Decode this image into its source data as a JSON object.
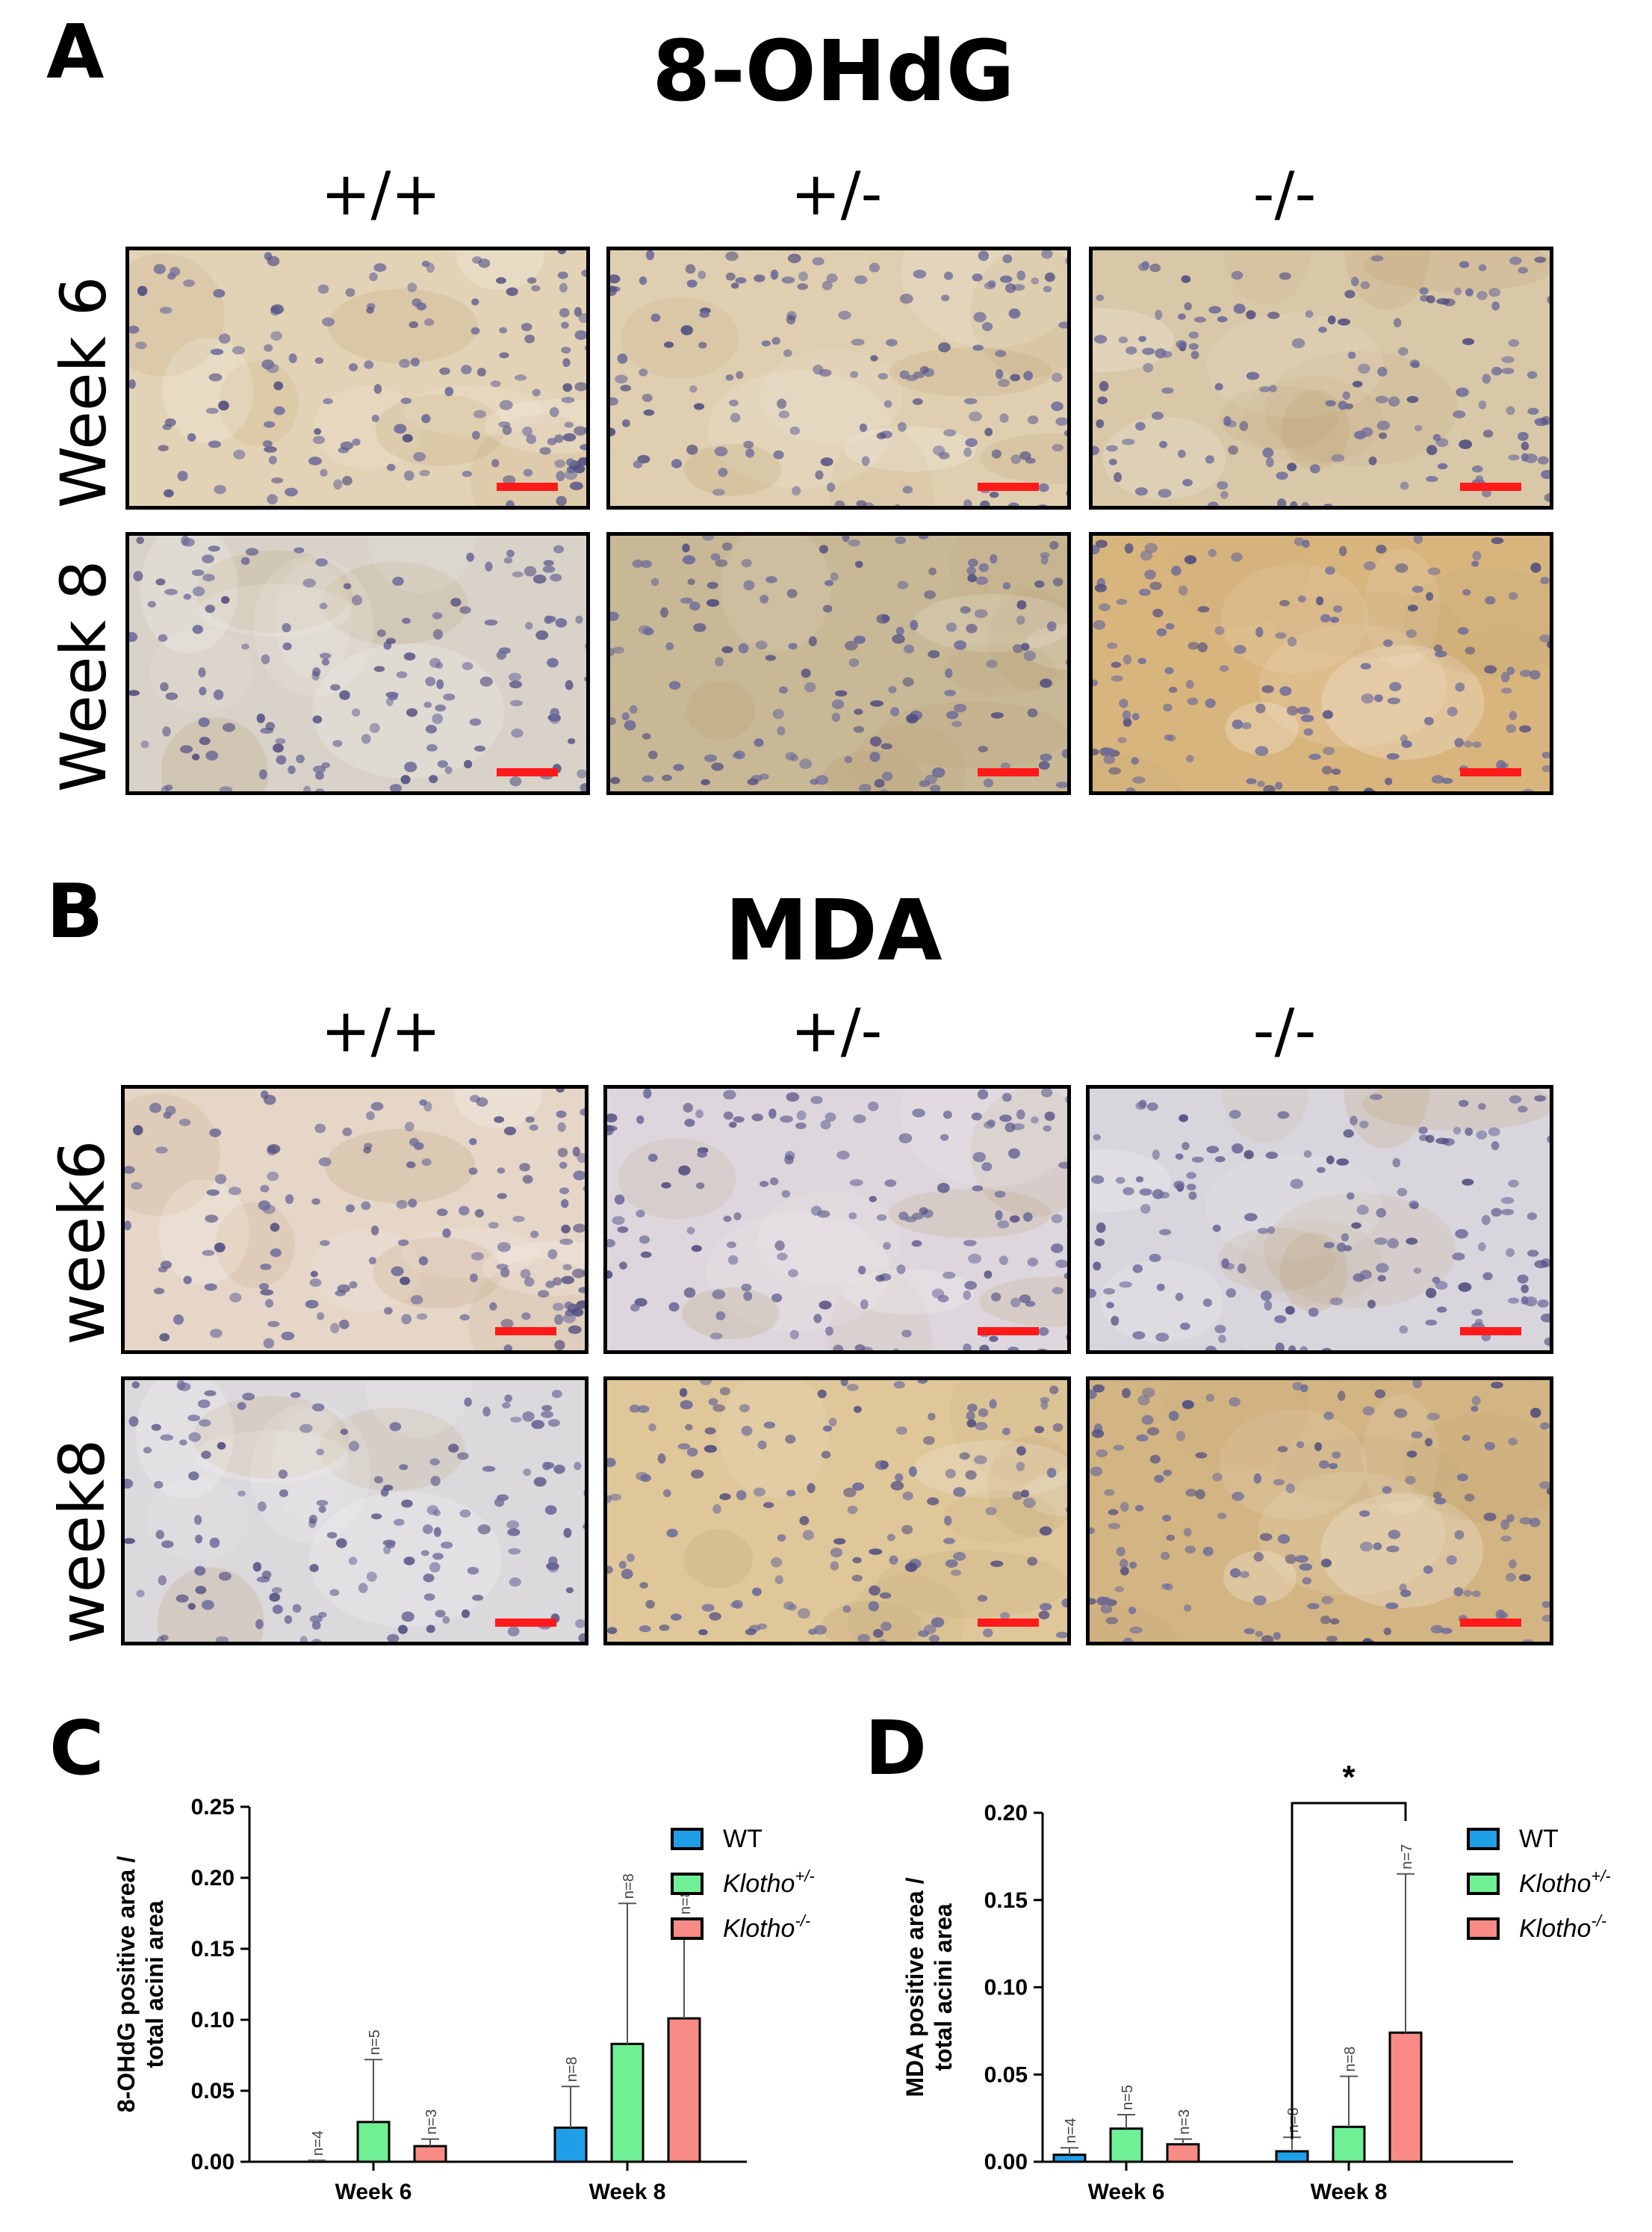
{
  "panel_a": {
    "letter": "A",
    "title": "8-OHdG",
    "columns": [
      "+/+",
      "+/-",
      "-/-"
    ],
    "rows": [
      "Week 6",
      "Week 8"
    ],
    "tiles": [
      {
        "row": 0,
        "col": 0,
        "stain": "#e3d3b6"
      },
      {
        "row": 0,
        "col": 1,
        "stain": "#dfcfb0"
      },
      {
        "row": 0,
        "col": 2,
        "stain": "#d9c8a8"
      },
      {
        "row": 1,
        "col": 0,
        "stain": "#d8d2c8"
      },
      {
        "row": 1,
        "col": 1,
        "stain": "#c8b896"
      },
      {
        "row": 1,
        "col": 2,
        "stain": "#d9b57e"
      }
    ]
  },
  "panel_b": {
    "letter": "B",
    "title": "MDA",
    "columns": [
      "+/+",
      "+/-",
      "-/-"
    ],
    "rows": [
      "week6",
      "week8"
    ],
    "tiles": [
      {
        "row": 0,
        "col": 0,
        "stain": "#e6d6c8"
      },
      {
        "row": 0,
        "col": 1,
        "stain": "#ddd6dc"
      },
      {
        "row": 0,
        "col": 2,
        "stain": "#d9d5dc"
      },
      {
        "row": 1,
        "col": 0,
        "stain": "#dcd9dd"
      },
      {
        "row": 1,
        "col": 1,
        "stain": "#dfc79a"
      },
      {
        "row": 1,
        "col": 2,
        "stain": "#d3b583"
      }
    ]
  },
  "colors": {
    "wt": "#1e9fe8",
    "het": "#6ff095",
    "ko": "#f98b86",
    "scalebar": "#ff1a1a"
  },
  "chart_data": [
    {
      "panel": "C",
      "type": "bar",
      "ylabel_line1": "8-OHdG positive area /",
      "ylabel_line2": "total acini area",
      "categories": [
        "Week 6",
        "Week 8"
      ],
      "ylim": [
        0,
        0.25
      ],
      "yticks": [
        "0.00",
        "0.05",
        "0.10",
        "0.15",
        "0.20",
        "0.25"
      ],
      "legend": [
        {
          "text": "WT",
          "sup": ""
        },
        {
          "text": "Klotho",
          "sup": "+/-"
        },
        {
          "text": "Klotho",
          "sup": "-/-"
        }
      ],
      "series": [
        {
          "values": [
            0.0,
            0.024
          ],
          "errors": [
            0.001,
            0.029
          ],
          "n": [
            "n=4",
            "n=8"
          ]
        },
        {
          "values": [
            0.028,
            0.083
          ],
          "errors": [
            0.044,
            0.099
          ],
          "n": [
            "n=5",
            "n=8"
          ]
        },
        {
          "values": [
            0.011,
            0.101
          ],
          "errors": [
            0.005,
            0.07
          ],
          "n": [
            "n=3",
            "n=8"
          ]
        }
      ]
    },
    {
      "panel": "D",
      "type": "bar",
      "ylabel_line1": "MDA positive area /",
      "ylabel_line2": "total acini area",
      "categories": [
        "Week 6",
        "Week 8"
      ],
      "ylim": [
        0,
        0.2
      ],
      "yticks": [
        "0.00",
        "0.05",
        "0.10",
        "0.15",
        "0.20"
      ],
      "legend": [
        {
          "text": "WT",
          "sup": ""
        },
        {
          "text": "Klotho",
          "sup": "+/-"
        },
        {
          "text": "Klotho",
          "sup": "-/-"
        }
      ],
      "series": [
        {
          "values": [
            0.004,
            0.006
          ],
          "errors": [
            0.004,
            0.008
          ],
          "n": [
            "n=4",
            "n=8"
          ]
        },
        {
          "values": [
            0.019,
            0.02
          ],
          "errors": [
            0.008,
            0.029
          ],
          "n": [
            "n=5",
            "n=8"
          ]
        },
        {
          "values": [
            0.01,
            0.074
          ],
          "errors": [
            0.003,
            0.091
          ],
          "n": [
            "n=3",
            "n=7"
          ]
        }
      ],
      "significance": {
        "label": "*",
        "from_series": 0,
        "to_series": 2,
        "category": 1
      }
    }
  ]
}
